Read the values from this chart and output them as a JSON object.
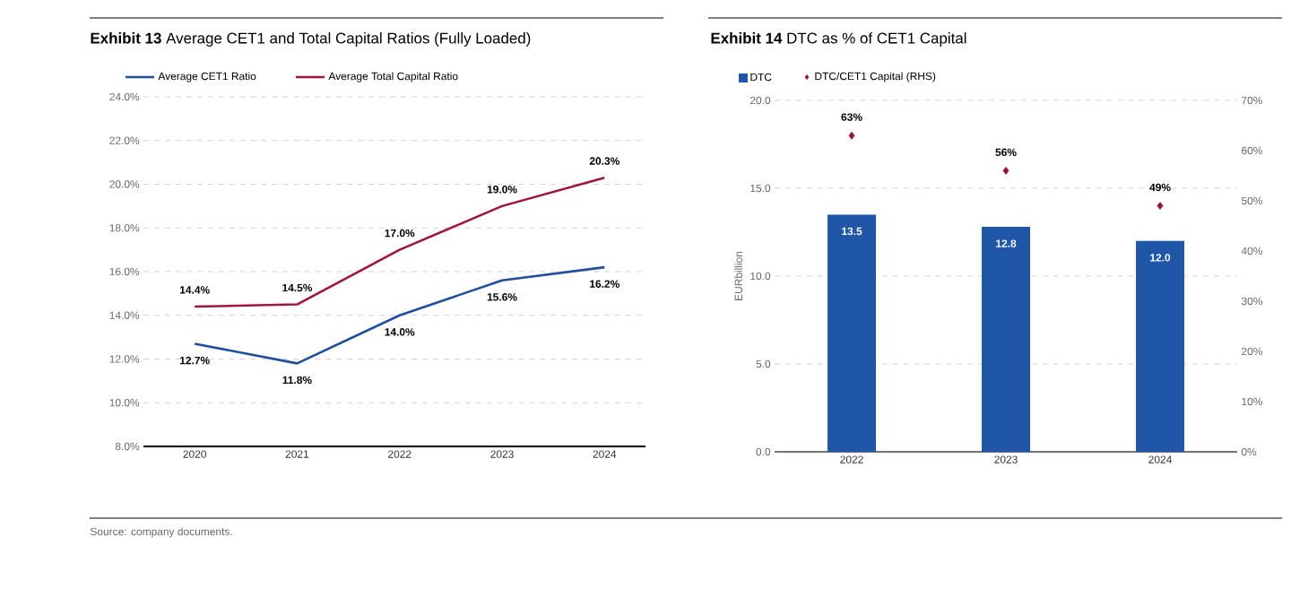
{
  "chart_data": [
    {
      "type": "line",
      "title": "**Exhibit 13** Average CET1 and Total Capital Ratios (Fully Loaded)",
      "categories": [
        "2020",
        "2021",
        "2022",
        "2023",
        "2024"
      ],
      "series": [
        {
          "name": "Average CET1 Ratio",
          "color": "#1f4e9c",
          "values": [
            12.7,
            11.8,
            14.0,
            15.6,
            16.2
          ],
          "value_labels": [
            "12.7%",
            "11.8%",
            "14.0%",
            "15.6%",
            "16.2%"
          ]
        },
        {
          "name": "Average Total Capital Ratio",
          "color": "#a0153e",
          "values": [
            14.4,
            14.5,
            17.0,
            19.0,
            20.3
          ],
          "value_labels": [
            "14.4%",
            "14.5%",
            "17.0%",
            "19.0%",
            "20.3%"
          ]
        }
      ],
      "ylim": [
        8,
        24
      ],
      "yticks": [
        {
          "value": 8,
          "label": "8.0%"
        },
        {
          "value": 10,
          "label": "10.0%"
        },
        {
          "value": 12,
          "label": "12.0%"
        },
        {
          "value": 14,
          "label": "14.0%"
        },
        {
          "value": 16,
          "label": "16.0%"
        },
        {
          "value": 18,
          "label": "18.0%"
        },
        {
          "value": 20,
          "label": "20.0%"
        },
        {
          "value": 22,
          "label": "22.0%"
        },
        {
          "value": 24,
          "label": "24.0%"
        }
      ],
      "grid": "y",
      "legend": "top",
      "marker": "none",
      "line_style": "solid",
      "annotations": [
        "Source: company documents."
      ]
    },
    {
      "type": "bar",
      "title": "**Exhibit 14** DTC as % of CET1 Capital",
      "categories": [
        "2022",
        "2023",
        "2024"
      ],
      "series": [
        {
          "name": "DTC",
          "color": "#1f56a8",
          "values": [
            13.5,
            12.8,
            12.0
          ],
          "value_labels": [
            "13.5",
            "12.8",
            "12.0"
          ]
        },
        {
          "name": "DTC/CET1 Capital (RHS)",
          "type": "scatter",
          "axis": "y2",
          "marker": "diamond",
          "color": "#9b0d3a",
          "values": [
            63,
            56,
            49
          ],
          "value_labels": [
            "63%",
            "56%",
            "49%"
          ]
        }
      ],
      "ylabel": "EURbillion",
      "ylim": [
        0,
        20
      ],
      "yticks": [
        {
          "value": 0,
          "label": "0.0"
        },
        {
          "value": 5,
          "label": "5.0"
        },
        {
          "value": 10,
          "label": "10.0"
        },
        {
          "value": 15,
          "label": "15.0"
        },
        {
          "value": 20,
          "label": "20.0"
        }
      ],
      "y2lim": [
        0,
        70
      ],
      "y2ticks": [
        {
          "value": 0,
          "label": "0%"
        },
        {
          "value": 10,
          "label": "10%"
        },
        {
          "value": 20,
          "label": "20%"
        },
        {
          "value": 30,
          "label": "30%"
        },
        {
          "value": 40,
          "label": "40%"
        },
        {
          "value": 50,
          "label": "50%"
        },
        {
          "value": 60,
          "label": "60%"
        },
        {
          "value": 70,
          "label": "70%"
        }
      ],
      "grid": "y",
      "legend": "top"
    }
  ]
}
